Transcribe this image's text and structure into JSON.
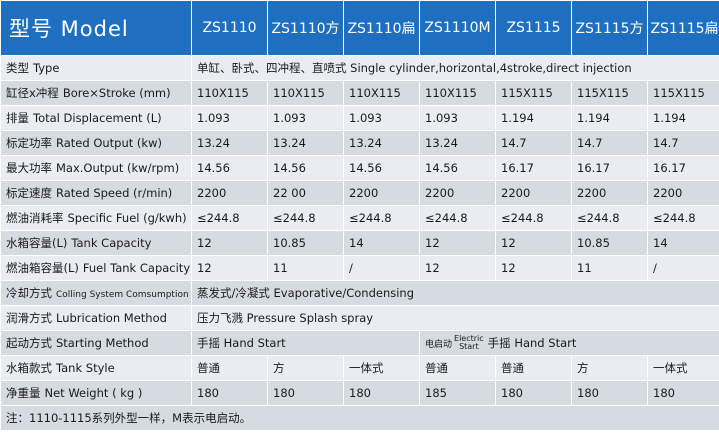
{
  "header": {
    "title": "型号 Model",
    "models": [
      "ZS1110",
      "ZS1110方",
      "ZS1110扁",
      "ZS1110M",
      "ZS1115",
      "ZS1115方",
      "ZS1115扁"
    ]
  },
  "rows": {
    "type": {
      "label_cn": "类型",
      "label_en": "Type",
      "value": "单缸、卧式、四冲程、直喷式 Single cylinder,horizontal,4stroke,direct injection"
    },
    "bore": {
      "label_cn": "缸径x冲程",
      "label_en": "Bore×Stroke (mm)",
      "values": [
        "110X115",
        "110X115",
        "110X115",
        "110X115",
        "115X115",
        "115X115",
        "115X115"
      ]
    },
    "displacement": {
      "label_cn": "排量",
      "label_en": "Total Displacement (L)",
      "values": [
        "1.093",
        "1.093",
        "1.093",
        "1.093",
        "1.194",
        "1.194",
        "1.194"
      ]
    },
    "rated_output": {
      "label_cn": "标定功率",
      "label_en": "Rated Output (kw)",
      "values": [
        "13.24",
        "13.24",
        "13.24",
        "13.24",
        "14.7",
        "14.7",
        "14.7"
      ]
    },
    "max_output": {
      "label_cn": "最大功率",
      "label_en": "Max.Output (kw/rpm)",
      "values": [
        "14.56",
        "14.56",
        "14.56",
        "14.56",
        "16.17",
        "16.17",
        "16.17"
      ]
    },
    "rated_speed": {
      "label_cn": "标定速度",
      "label_en": "Rated Speed (r/min)",
      "values": [
        "2200",
        "22 00",
        "2200",
        "2200",
        "2200",
        "2200",
        "2200"
      ]
    },
    "fuel": {
      "label_cn": "燃油消耗率",
      "label_en": "Specific Fuel (g/kwh)",
      "values": [
        "≤244.8",
        "≤244.8",
        "≤244.8",
        "≤244.8",
        "≤244.8",
        "≤244.8",
        "≤244.8"
      ]
    },
    "tank_capacity": {
      "label_cn": "水箱容量(L)",
      "label_en": "Tank Capacity",
      "values": [
        "12",
        "10.85",
        "14",
        "12",
        "12",
        "10.85",
        "14"
      ]
    },
    "fuel_tank": {
      "label_cn": "燃油箱容量(L)",
      "label_en": "Fuel Tank Capacity",
      "values": [
        "12",
        "11",
        "/",
        "12",
        "12",
        "11",
        "/"
      ]
    },
    "cooling": {
      "label_cn": "冷却方式",
      "label_en": "Colling System Comsumption",
      "value": "蒸发式/冷凝式 Evaporative/Condensing"
    },
    "lubrication": {
      "label_cn": "润滑方式",
      "label_en": "Lubrication Method",
      "value": "压力飞溅 Pressure Splash spray"
    },
    "starting": {
      "label_cn": "起动方式",
      "label_en": "Starting Method",
      "value_a": "手摇 Hand Start",
      "electric_cn": "电启动",
      "electric_en_1": "Electric",
      "electric_en_2": "Start",
      "value_b": "手摇 Hand Start"
    },
    "tank_style": {
      "label_cn": "水箱款式",
      "label_en": "Tank Style",
      "values": [
        "普通",
        "方",
        "一体式",
        "普通",
        "普通",
        "方",
        "一体式"
      ]
    },
    "weight": {
      "label_cn": "净重量",
      "label_en": "Net Weight ( kg )",
      "values": [
        "180",
        "180",
        "180",
        "185",
        "180",
        "180",
        "180"
      ]
    }
  },
  "note": "注：1110-1115系列外型一样，M表示电启动。",
  "colors": {
    "header_bg": "#1f6fc0",
    "row_dark": "#d6dbe2",
    "row_light": "#e9edf1"
  }
}
